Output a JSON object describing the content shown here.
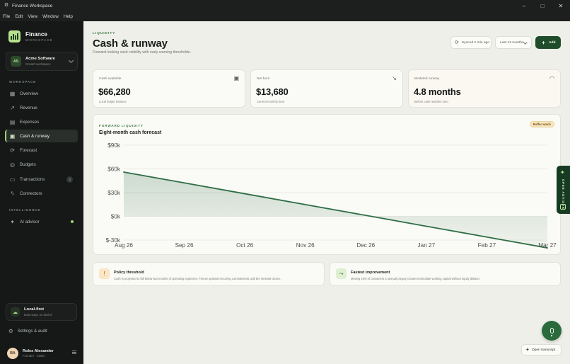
{
  "window": {
    "title": "Finance Workspace",
    "menu": [
      "File",
      "Edit",
      "View",
      "Window",
      "Help"
    ]
  },
  "sidebar": {
    "brand": {
      "name": "Finance",
      "sub": "WORKSPACE"
    },
    "org": {
      "initials": "AS",
      "name": "Acme Software",
      "sub": "Growth workspace"
    },
    "workspace_label": "WORKSPACE",
    "items": [
      {
        "label": "Overview",
        "icon": "grid-icon"
      },
      {
        "label": "Revenue",
        "icon": "trend-icon"
      },
      {
        "label": "Expenses",
        "icon": "receipt-icon"
      },
      {
        "label": "Cash & runway",
        "icon": "wallet-icon",
        "active": true
      },
      {
        "label": "Forecast",
        "icon": "forecast-icon"
      },
      {
        "label": "Budgets",
        "icon": "target-icon"
      },
      {
        "label": "Transactions",
        "icon": "book-icon",
        "badge": "3"
      },
      {
        "label": "Connectors",
        "icon": "bolt-icon"
      }
    ],
    "intelligence_label": "INTELLIGENCE",
    "advisor": {
      "label": "AI advisor",
      "icon": "sparkle-icon"
    },
    "local_first": {
      "title": "Local-first",
      "sub": "Data stays on device"
    },
    "settings_label": "Settings & audit",
    "user": {
      "initials": "BA",
      "name": "Rolex Alexander",
      "role": "Founder · Admin"
    }
  },
  "header": {
    "eyebrow": "LIQUIDITY",
    "title": "Cash & runway",
    "subtitle": "Forward-looking cash visibility with early-warning thresholds.",
    "sync_label": "Synced 2 min ago",
    "range_label": "Last 12 months",
    "add_label": "Add"
  },
  "kpis": [
    {
      "label": "Cash available",
      "value": "$66,280",
      "sub": "Local ledger balance",
      "icon": "wallet-icon"
    },
    {
      "label": "Net burn",
      "value": "$13,680",
      "sub": "Current monthly burn",
      "icon": "trend-down-icon"
    },
    {
      "label": "Modeled runway",
      "value": "4.8 months",
      "sub": "Before cash reaches zero",
      "icon": "gauge-icon"
    }
  ],
  "forecast": {
    "eyebrow": "FORWARD LIQUIDITY",
    "title": "Eight-month cash forecast",
    "badge": "Buffer watch"
  },
  "chart_data": {
    "type": "area",
    "categories": [
      "Aug 26",
      "Sep 26",
      "Oct 26",
      "Nov 26",
      "Dec 26",
      "Jan 27",
      "Feb 27",
      "Mar 27"
    ],
    "values": [
      56000,
      42300,
      28600,
      14900,
      1200,
      -12500,
      -26200,
      -39900
    ],
    "y_ticks": [
      90000,
      60000,
      30000,
      0,
      -30000
    ],
    "y_tick_labels": [
      "$90k",
      "$60k",
      "$30k",
      "$0k",
      "$-30k"
    ],
    "ylim": [
      -30000,
      90000
    ],
    "grid": true,
    "color": "#2f6e46"
  },
  "notes": [
    {
      "title": "Policy threshold",
      "desc": "Cash is projected to fall below two months of operating expenses. Freeze optional recurring commitments until the renewal closes.",
      "icon": "alert-icon"
    },
    {
      "title": "Fastest improvement",
      "desc": "Moving 15% of customers to annual prepay creates immediate working capital without equity dilution.",
      "icon": "route-icon"
    }
  ],
  "advisor_tab": {
    "label": "OPEN ADVISOR"
  },
  "transcript_label": "Open transcript"
}
